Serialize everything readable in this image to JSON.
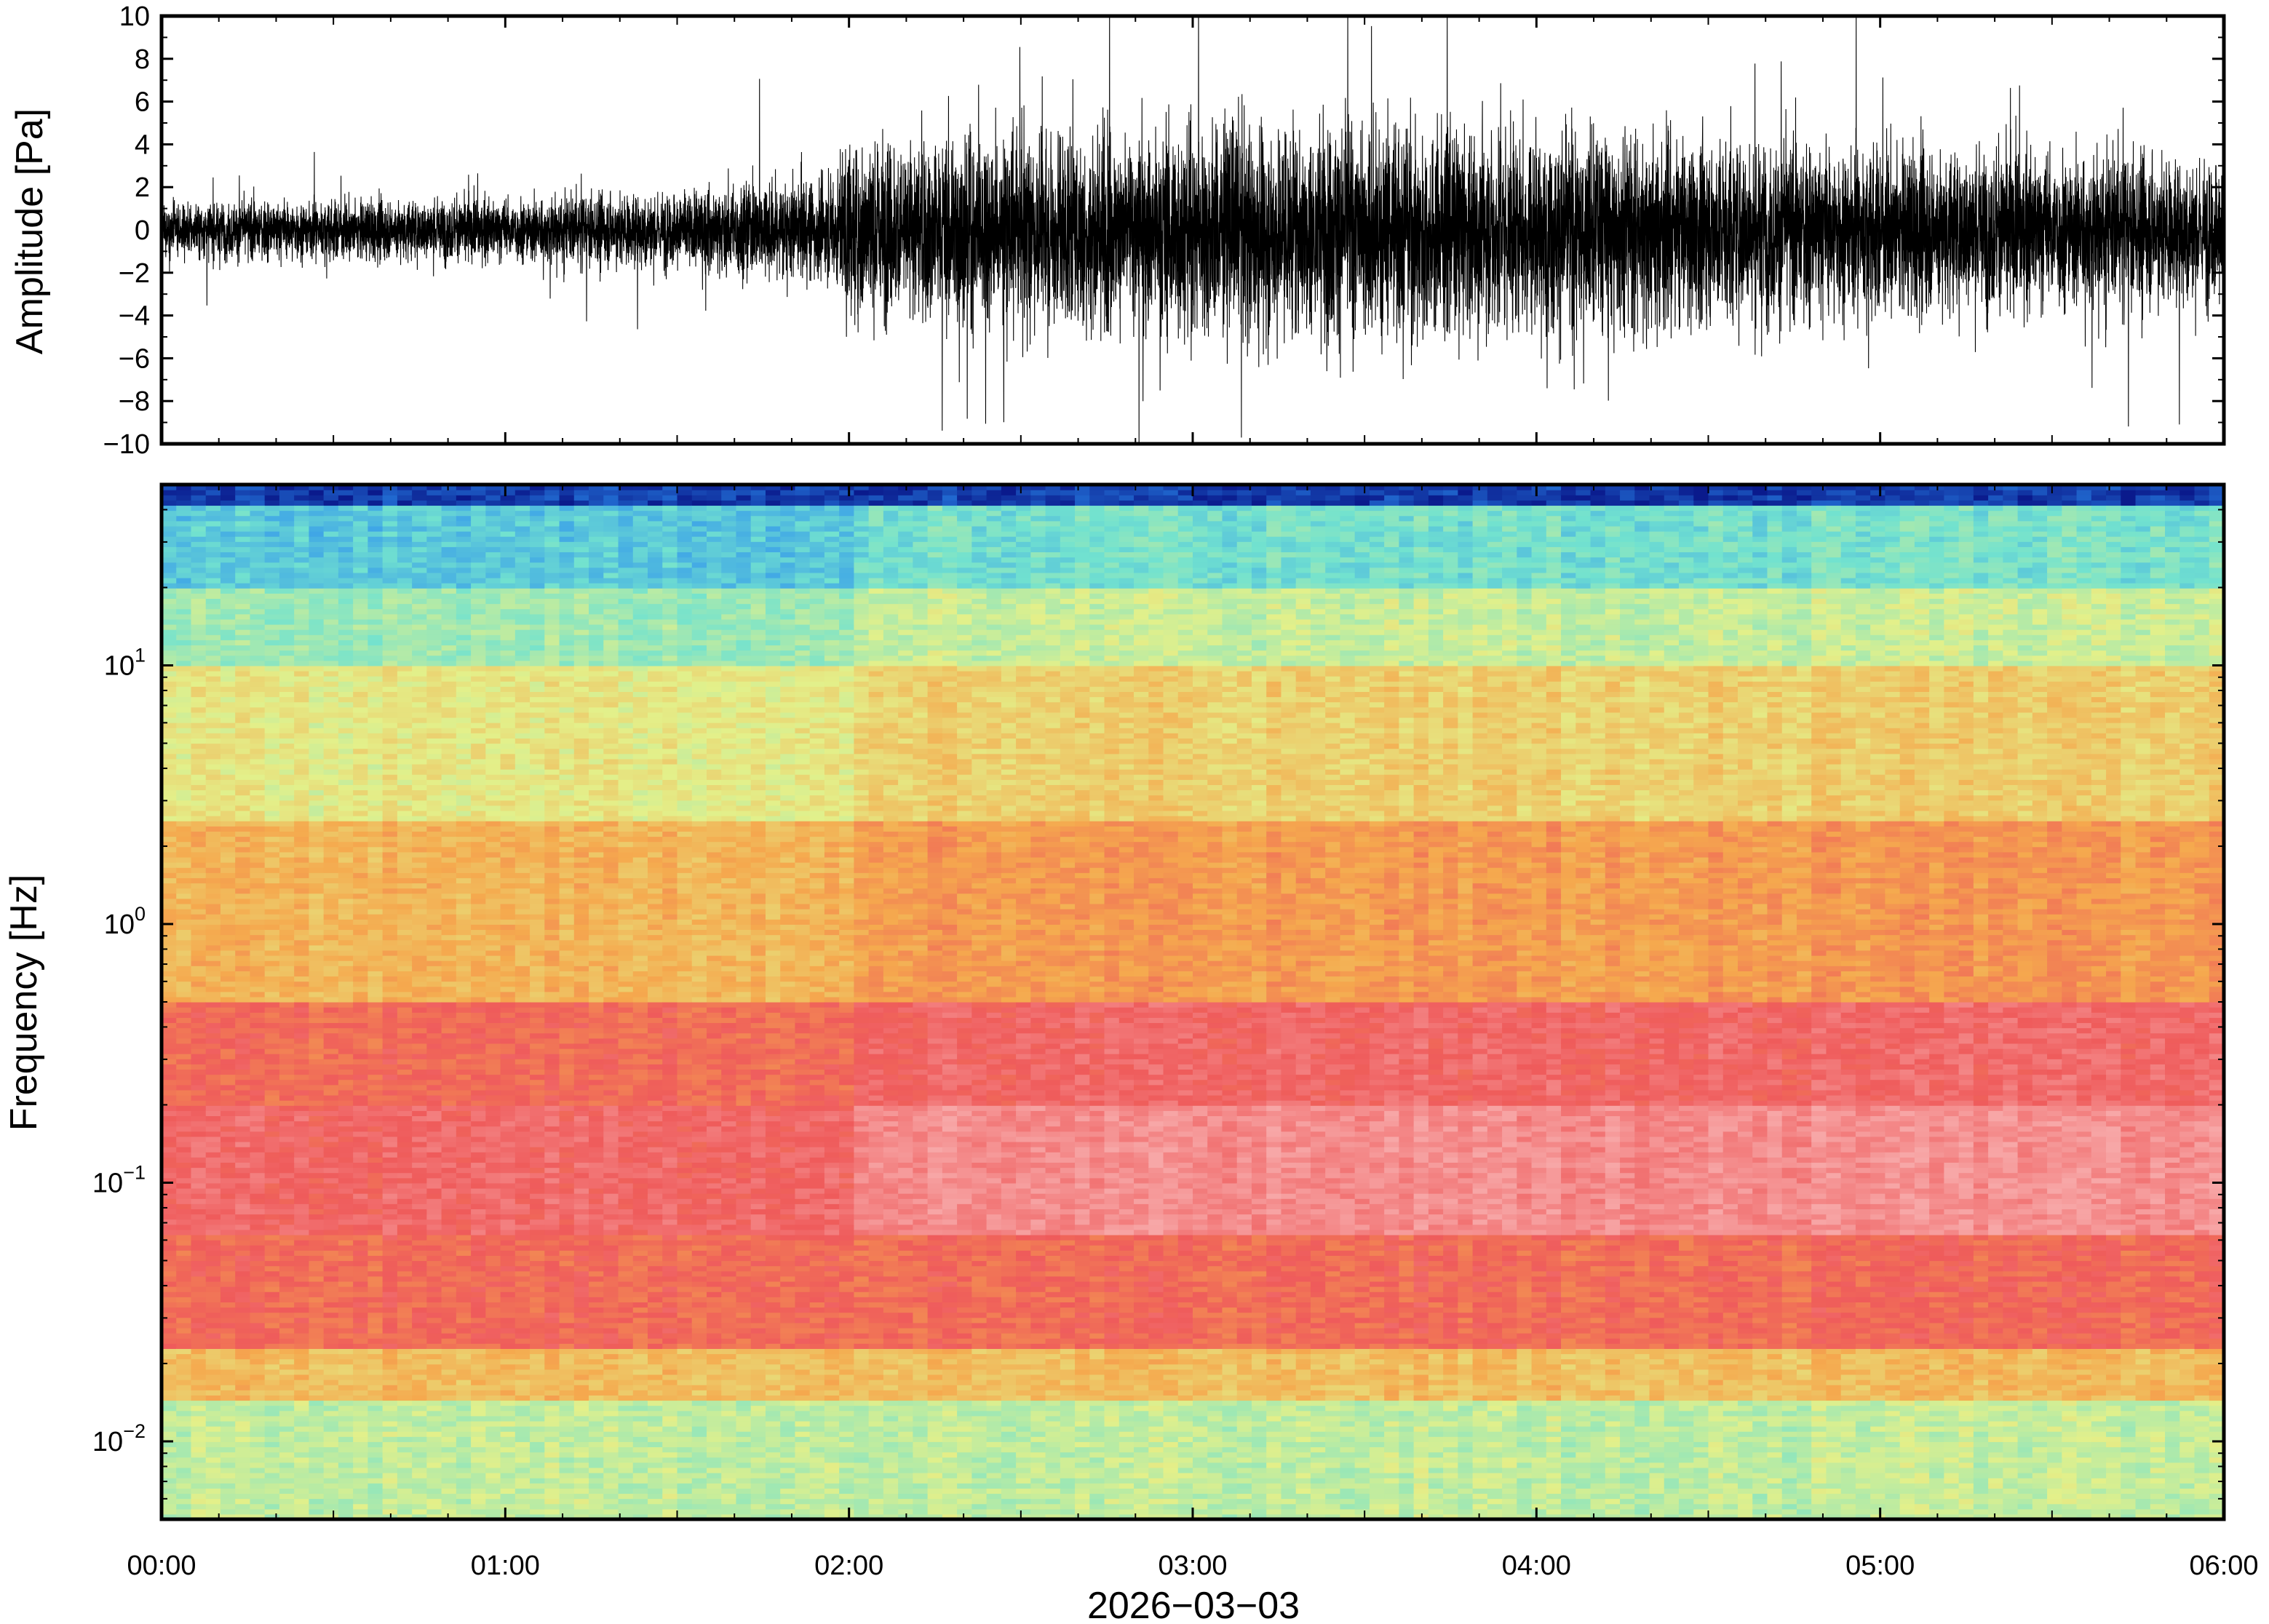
{
  "chart_data": [
    {
      "type": "line",
      "panel": "waveform",
      "ylabel": "Amplitude [Pa]",
      "ylim": [
        -10,
        10
      ],
      "yticks": [
        {
          "value": 10,
          "label": "10"
        },
        {
          "value": 8,
          "label": "8"
        },
        {
          "value": 6,
          "label": "6"
        },
        {
          "value": 4,
          "label": "4"
        },
        {
          "value": 2,
          "label": "2"
        },
        {
          "value": 0,
          "label": "0"
        },
        {
          "value": -2,
          "label": "−2"
        },
        {
          "value": -4,
          "label": "−4"
        },
        {
          "value": -6,
          "label": "−6"
        },
        {
          "value": -8,
          "label": "−8"
        },
        {
          "value": -10,
          "label": "−10"
        }
      ],
      "xlim": [
        "00:00",
        "06:00"
      ],
      "envelope_time_hours": [
        0.0,
        0.5,
        1.0,
        1.5,
        1.75,
        1.95,
        2.0,
        2.5,
        3.0,
        3.5,
        4.0,
        4.5,
        5.0,
        5.5,
        6.0
      ],
      "envelope_amplitude_pa": [
        1.6,
        1.7,
        1.8,
        2.2,
        2.8,
        3.0,
        5.0,
        5.5,
        6.0,
        6.3,
        6.0,
        5.3,
        4.8,
        4.5,
        4.0
      ],
      "line_color": "#000000"
    },
    {
      "type": "heatmap",
      "panel": "spectrogram",
      "ylabel": "Frequency [Hz]",
      "yscale": "log",
      "ylim": [
        0.005,
        50
      ],
      "yticks": [
        {
          "value": 0.01,
          "base": "10",
          "exp": "−2"
        },
        {
          "value": 0.1,
          "base": "10",
          "exp": "−1"
        },
        {
          "value": 1,
          "base": "10",
          "exp": "0"
        },
        {
          "value": 10,
          "base": "10",
          "exp": "1"
        }
      ],
      "xlabel": "2026−03−03",
      "xticks": [
        "00:00",
        "01:00",
        "02:00",
        "03:00",
        "04:00",
        "05:00",
        "06:00"
      ],
      "xlim_hours": [
        0,
        6
      ],
      "colormap": [
        "#0a1a8c",
        "#2b8ef0",
        "#72e2cf",
        "#e3f08a",
        "#f5a94e",
        "#ef5b5b",
        "#f7a7a7"
      ]
    }
  ]
}
